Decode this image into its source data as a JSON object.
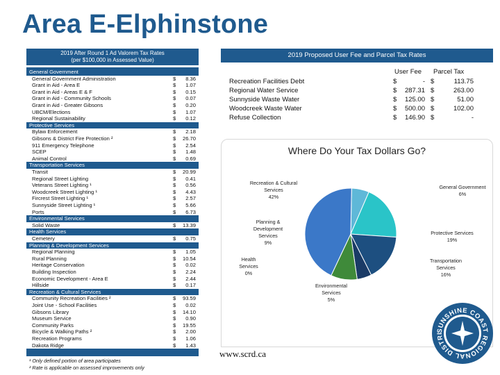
{
  "title": "Area E-Elphinstone",
  "left_header": [
    "2019 After Round 1 Ad Valorem Tax Rates",
    "(per $100,000 in Assessed Value)"
  ],
  "tax_rows": [
    {
      "type": "cat",
      "name": "General Government"
    },
    {
      "type": "item",
      "name": "General Government Administration",
      "val": "8.36"
    },
    {
      "type": "item",
      "name": "Grant in Aid - Area E",
      "val": "1.07"
    },
    {
      "type": "item",
      "name": "Grant in Aid - Areas E & F",
      "val": "0.15"
    },
    {
      "type": "item",
      "name": "Grant in Aid - Community Schools",
      "val": "0.07"
    },
    {
      "type": "item",
      "name": "Grant in Aid - Greater Gibsons",
      "val": "0.20"
    },
    {
      "type": "item",
      "name": "UBCM/Elections",
      "val": "1.07"
    },
    {
      "type": "item",
      "name": "Regional Sustainability",
      "val": "0.12"
    },
    {
      "type": "cat",
      "name": "Protective Services"
    },
    {
      "type": "item",
      "name": "Bylaw Enforcement",
      "val": "2.18"
    },
    {
      "type": "item",
      "name": "Gibsons & District Fire Protection ²",
      "val": "26.70"
    },
    {
      "type": "item",
      "name": "911 Emergency Telephone",
      "val": "2.54"
    },
    {
      "type": "item",
      "name": "SCEP",
      "val": "1.48"
    },
    {
      "type": "item",
      "name": "Animal Control",
      "val": "0.69"
    },
    {
      "type": "cat",
      "name": "Transportation Services"
    },
    {
      "type": "item",
      "name": "Transit",
      "val": "20.99"
    },
    {
      "type": "item",
      "name": "Regional Street Lighting",
      "val": "0.41"
    },
    {
      "type": "item",
      "name": "Veterans Street Lighting ¹",
      "val": "0.56"
    },
    {
      "type": "item",
      "name": "Woodcreek Street Lighting ¹",
      "val": "4.43"
    },
    {
      "type": "item",
      "name": "Fircrest Street Lighting ¹",
      "val": "2.57"
    },
    {
      "type": "item",
      "name": "Sunnyside Street Lighting ¹",
      "val": "5.66"
    },
    {
      "type": "item",
      "name": "Ports",
      "val": "6.73"
    },
    {
      "type": "cat",
      "name": "Environmental Services"
    },
    {
      "type": "item",
      "name": "Solid Waste",
      "val": "13.39"
    },
    {
      "type": "cat",
      "name": "Health Services"
    },
    {
      "type": "item",
      "name": "Cemetery",
      "val": "0.75"
    },
    {
      "type": "cat",
      "name": "Planning & Development Services"
    },
    {
      "type": "item",
      "name": "Regional Planning",
      "val": "1.05"
    },
    {
      "type": "item",
      "name": "Rural Planning",
      "val": "10.54"
    },
    {
      "type": "item",
      "name": "Heritage Conservation",
      "val": "0.02"
    },
    {
      "type": "item",
      "name": "Building Inspection",
      "val": "2.24"
    },
    {
      "type": "item",
      "name": "Economic Development - Area E",
      "val": "2.44"
    },
    {
      "type": "item",
      "name": "Hillside",
      "val": "0.17"
    },
    {
      "type": "cat",
      "name": "Recreation & Cultural Services"
    },
    {
      "type": "item",
      "name": "Community Recreation Facilities ²",
      "val": "93.59"
    },
    {
      "type": "item",
      "name": "Joint Use - School Facilities",
      "val": "0.02"
    },
    {
      "type": "item",
      "name": "Gibsons Library",
      "val": "14.10"
    },
    {
      "type": "item",
      "name": "Museum Service",
      "val": "0.90"
    },
    {
      "type": "item",
      "name": "Community Parks",
      "val": "19.55"
    },
    {
      "type": "item",
      "name": "Bicycle & Walking Paths ²",
      "val": "2.00"
    },
    {
      "type": "item",
      "name": "Recreation Programs",
      "val": "1.06"
    },
    {
      "type": "item",
      "name": "Dakota Ridge",
      "val": "1.43"
    }
  ],
  "dollar_sign": "$",
  "footnotes": [
    "¹ Only defined portion of area participates",
    "² Rate is applicable on assessed improvements only"
  ],
  "right_header": "2019 Proposed User Fee and Parcel Tax Rates",
  "fee_columns": [
    "User Fee",
    "Parcel Tax"
  ],
  "fee_rows": [
    {
      "name": "Recreation Facilities Debt",
      "user_fee": "-",
      "parcel_tax": "113.75"
    },
    {
      "name": "Regional Water Service",
      "user_fee": "287.31",
      "parcel_tax": "263.00"
    },
    {
      "name": "Sunnyside Waste Water",
      "user_fee": "125.00",
      "parcel_tax": "51.00"
    },
    {
      "name": "Woodcreek Waste Water",
      "user_fee": "500.00",
      "parcel_tax": "102.00"
    },
    {
      "name": "Refuse Collection",
      "user_fee": "146.90",
      "parcel_tax": "-"
    }
  ],
  "chart_data": {
    "type": "pie",
    "title": "Where Do Your Tax Dollars Go?",
    "slices": [
      {
        "label": "General Government",
        "value": 6,
        "pct_label": "6%",
        "color": "#5fb8d8"
      },
      {
        "label": "Protective Services",
        "value": 19,
        "pct_label": "19%",
        "color": "#2ac4c8"
      },
      {
        "label": "Transportation Services",
        "value": 16,
        "pct_label": "16%",
        "color": "#1d4f80"
      },
      {
        "label": "Environmental Services",
        "value": 5,
        "pct_label": "5%",
        "color": "#1a3b66"
      },
      {
        "label": "Health Services",
        "value": 0,
        "pct_label": "0%",
        "color": "#2e6fa0"
      },
      {
        "label": "Planning & Development Services",
        "value": 9,
        "pct_label": "9%",
        "color": "#3f8a3a"
      },
      {
        "label": "Recreation & Cultural Services",
        "value": 42,
        "pct_label": "42%",
        "color": "#3b78c8"
      }
    ]
  },
  "website": "www.scrd.ca",
  "logo_text": "SUNSHINE COAST REGIONAL DISTRICT"
}
